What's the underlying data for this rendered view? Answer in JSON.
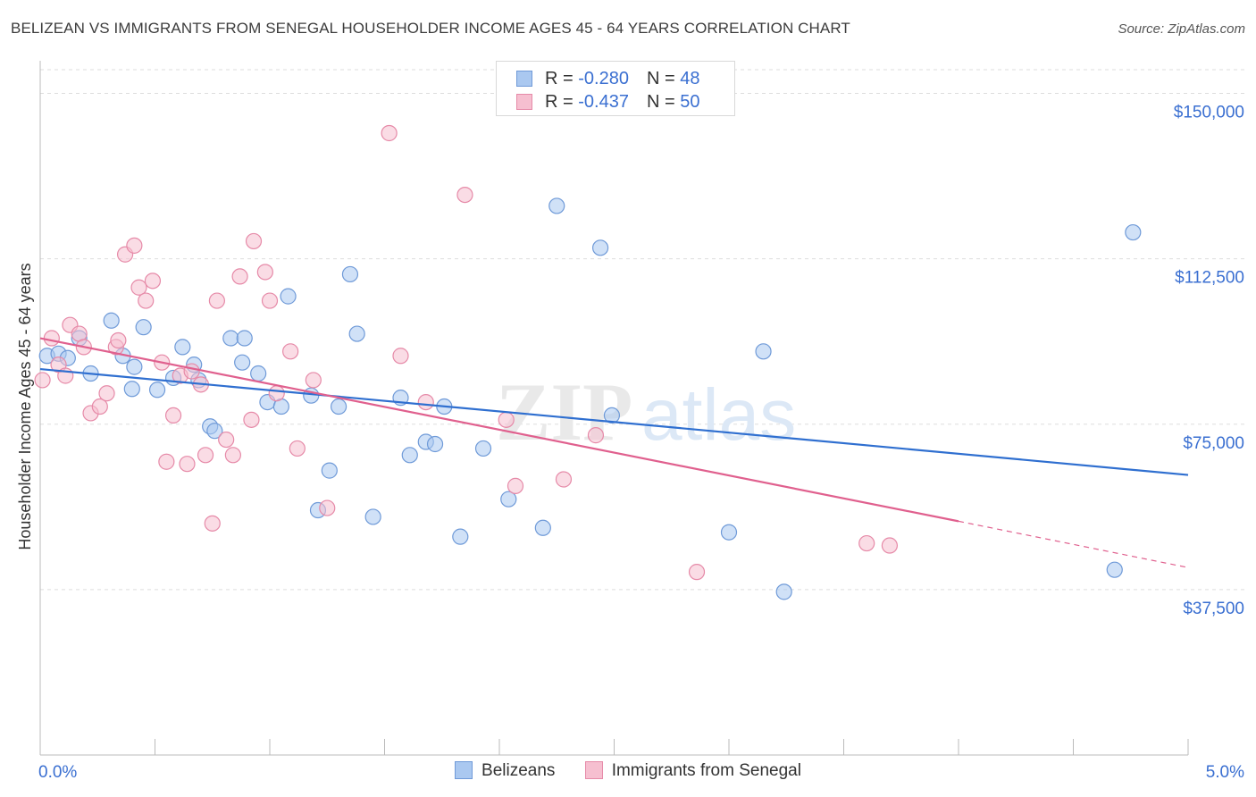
{
  "title": "BELIZEAN VS IMMIGRANTS FROM SENEGAL HOUSEHOLDER INCOME AGES 45 - 64 YEARS CORRELATION CHART",
  "source": "Source: ZipAtlas.com",
  "watermark": {
    "zip": "ZIP",
    "atlas": "atlas"
  },
  "legend_top": {
    "rows": [
      {
        "r_label": "R = ",
        "r_value": "-0.280",
        "n_label": "N = ",
        "n_value": "48"
      },
      {
        "r_label": "R = ",
        "r_value": "-0.437",
        "n_label": "N = ",
        "n_value": "50"
      }
    ]
  },
  "colors": {
    "belizeans_fill": "#aac8f0",
    "belizeans_stroke": "#6f9ad8",
    "belizeans_line": "#2f6fd0",
    "senegal_fill": "#f6bfd0",
    "senegal_stroke": "#e68aa8",
    "senegal_line": "#e0608e",
    "tick_label": "#3a6fd1",
    "grid": "#dddddd"
  },
  "chart_data": {
    "type": "scatter",
    "title": "BELIZEAN VS IMMIGRANTS FROM SENEGAL HOUSEHOLDER INCOME AGES 45 - 64 YEARS CORRELATION CHART",
    "xlabel": "",
    "ylabel": "Householder Income Ages 45 - 64 years",
    "xlim": [
      0.0,
      5.0
    ],
    "ylim": [
      0,
      157000
    ],
    "x_tick_labels": [
      "0.0%",
      "5.0%"
    ],
    "x_tick_values": [
      0.0,
      5.0
    ],
    "y_tick_labels": [
      "$37,500",
      "$75,000",
      "$112,500",
      "$150,000"
    ],
    "y_tick_values": [
      37500,
      75000,
      112500,
      150000
    ],
    "grid": true,
    "legend_placement": "top-center",
    "series": [
      {
        "name": "Belizeans",
        "r": -0.28,
        "n": 48,
        "trend": {
          "x": [
            0.0,
            5.0
          ],
          "y": [
            87500,
            63500
          ]
        },
        "points": [
          [
            0.03,
            90500
          ],
          [
            0.08,
            91000
          ],
          [
            0.12,
            90000
          ],
          [
            0.17,
            94500
          ],
          [
            0.22,
            86500
          ],
          [
            0.31,
            98500
          ],
          [
            0.36,
            90500
          ],
          [
            0.41,
            88000
          ],
          [
            0.4,
            83000
          ],
          [
            0.45,
            97000
          ],
          [
            0.51,
            82800
          ],
          [
            0.58,
            85500
          ],
          [
            0.62,
            92500
          ],
          [
            0.67,
            88500
          ],
          [
            0.69,
            85000
          ],
          [
            0.74,
            74500
          ],
          [
            0.76,
            73500
          ],
          [
            0.83,
            94500
          ],
          [
            0.88,
            89000
          ],
          [
            0.89,
            94500
          ],
          [
            0.95,
            86500
          ],
          [
            0.99,
            80000
          ],
          [
            1.05,
            79000
          ],
          [
            1.08,
            104000
          ],
          [
            1.18,
            81500
          ],
          [
            1.21,
            55500
          ],
          [
            1.26,
            64500
          ],
          [
            1.3,
            79000
          ],
          [
            1.35,
            109000
          ],
          [
            1.38,
            95500
          ],
          [
            1.45,
            54000
          ],
          [
            1.57,
            81000
          ],
          [
            1.61,
            68000
          ],
          [
            1.68,
            71000
          ],
          [
            1.72,
            70500
          ],
          [
            1.76,
            79000
          ],
          [
            1.83,
            49500
          ],
          [
            1.93,
            69500
          ],
          [
            2.04,
            58000
          ],
          [
            2.19,
            51500
          ],
          [
            2.25,
            124500
          ],
          [
            2.44,
            115000
          ],
          [
            2.49,
            77000
          ],
          [
            3.0,
            50500
          ],
          [
            3.15,
            91500
          ],
          [
            3.24,
            37000
          ],
          [
            4.68,
            42000
          ],
          [
            4.76,
            118500
          ]
        ]
      },
      {
        "name": "Immigrants from Senegal",
        "r": -0.437,
        "n": 50,
        "trend": {
          "x": [
            0.0,
            4.0
          ],
          "y": [
            94500,
            53000
          ]
        },
        "trend_extension": {
          "x": [
            4.0,
            5.0
          ],
          "y": [
            53000,
            42500
          ]
        },
        "points": [
          [
            0.01,
            85000
          ],
          [
            0.05,
            94500
          ],
          [
            0.08,
            88500
          ],
          [
            0.11,
            86000
          ],
          [
            0.13,
            97500
          ],
          [
            0.17,
            95500
          ],
          [
            0.19,
            92500
          ],
          [
            0.22,
            77500
          ],
          [
            0.26,
            79000
          ],
          [
            0.29,
            82000
          ],
          [
            0.33,
            92500
          ],
          [
            0.34,
            94000
          ],
          [
            0.37,
            113500
          ],
          [
            0.41,
            115500
          ],
          [
            0.43,
            106000
          ],
          [
            0.46,
            103000
          ],
          [
            0.49,
            107500
          ],
          [
            0.53,
            89000
          ],
          [
            0.55,
            66500
          ],
          [
            0.58,
            77000
          ],
          [
            0.61,
            86000
          ],
          [
            0.64,
            66000
          ],
          [
            0.66,
            87000
          ],
          [
            0.7,
            84000
          ],
          [
            0.72,
            68000
          ],
          [
            0.75,
            52500
          ],
          [
            0.77,
            103000
          ],
          [
            0.81,
            71500
          ],
          [
            0.84,
            68000
          ],
          [
            0.87,
            108500
          ],
          [
            0.92,
            76000
          ],
          [
            0.93,
            116500
          ],
          [
            0.98,
            109500
          ],
          [
            1.0,
            103000
          ],
          [
            1.03,
            82000
          ],
          [
            1.09,
            91500
          ],
          [
            1.12,
            69500
          ],
          [
            1.19,
            85000
          ],
          [
            1.25,
            56000
          ],
          [
            1.52,
            141000
          ],
          [
            1.57,
            90500
          ],
          [
            1.68,
            80000
          ],
          [
            1.85,
            127000
          ],
          [
            2.03,
            76000
          ],
          [
            2.07,
            61000
          ],
          [
            2.28,
            62500
          ],
          [
            2.42,
            72500
          ],
          [
            2.86,
            41500
          ],
          [
            3.6,
            48000
          ],
          [
            3.7,
            47500
          ]
        ]
      }
    ]
  },
  "legend_bottom": {
    "items": [
      {
        "label": "Belizeans"
      },
      {
        "label": "Immigrants from Senegal"
      }
    ]
  }
}
